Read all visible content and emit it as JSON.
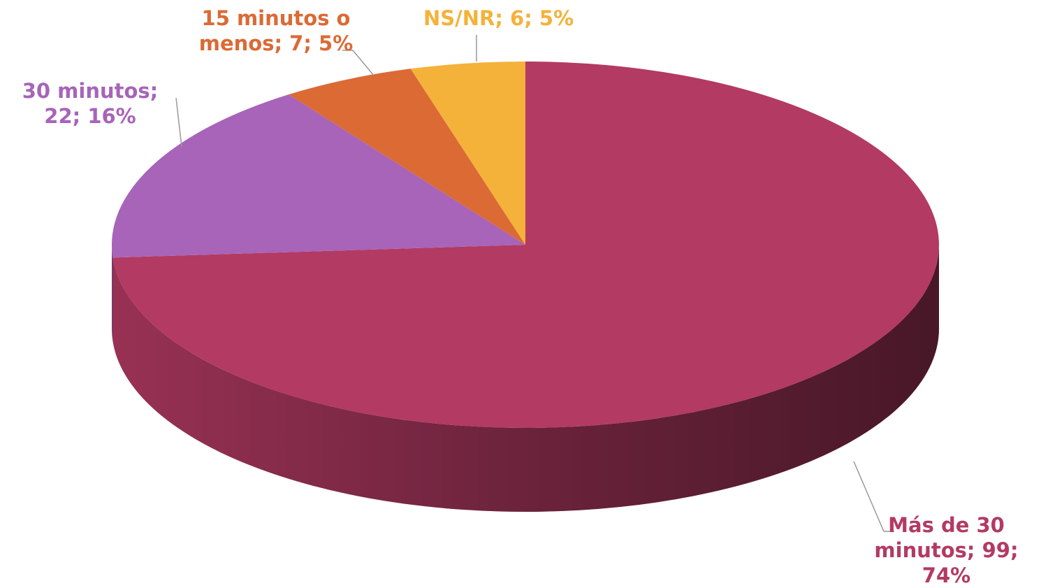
{
  "chart_data": {
    "type": "pie3d",
    "labels": [
      "Más de 30 minutos; 99; 74%",
      "30 minutos; 22; 16%",
      "15 minutos o menos; 7; 5%",
      "NS/NR; 6; 5%"
    ],
    "values": [
      99,
      22,
      7,
      6
    ],
    "colors": [
      "#b33a63",
      "#a764b9",
      "#db6a35",
      "#f4b23a"
    ]
  }
}
